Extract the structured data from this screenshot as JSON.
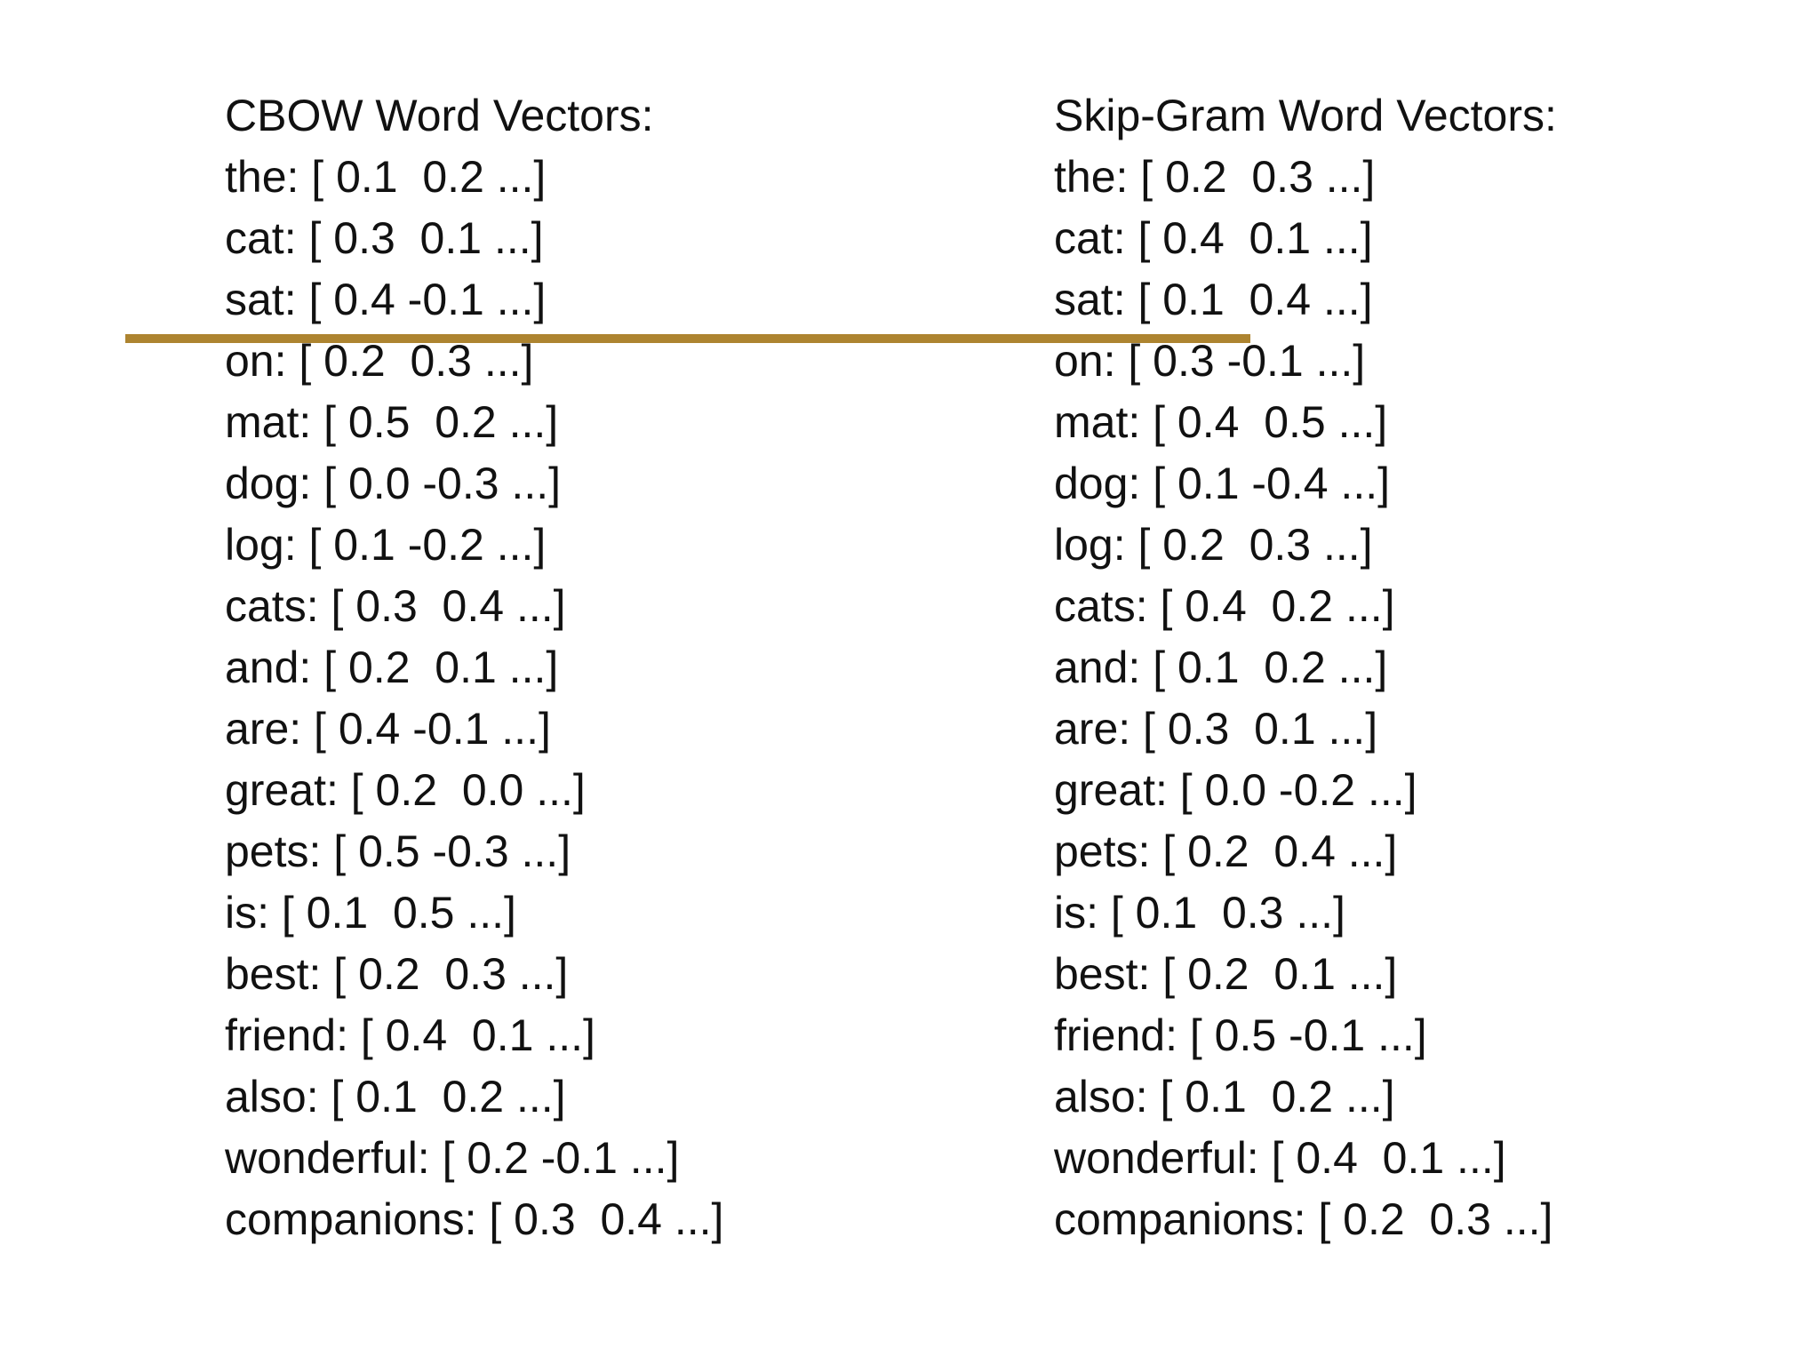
{
  "colors": {
    "rule": "#ad8430",
    "text": "#111111",
    "background": "#ffffff"
  },
  "left_column": {
    "title": "CBOW Word Vectors:",
    "rows": [
      "the: [ 0.1  0.2 ...]",
      "cat: [ 0.3  0.1 ...]",
      "sat: [ 0.4 -0.1 ...]",
      "on: [ 0.2  0.3 ...]",
      "mat: [ 0.5  0.2 ...]",
      "dog: [ 0.0 -0.3 ...]",
      "log: [ 0.1 -0.2 ...]",
      "cats: [ 0.3  0.4 ...]",
      "and: [ 0.2  0.1 ...]",
      "are: [ 0.4 -0.1 ...]",
      "great: [ 0.2  0.0 ...]",
      "pets: [ 0.5 -0.3 ...]",
      "is: [ 0.1  0.5 ...]",
      "best: [ 0.2  0.3 ...]",
      "friend: [ 0.4  0.1 ...]",
      "also: [ 0.1  0.2 ...]",
      "wonderful: [ 0.2 -0.1 ...]",
      "companions: [ 0.3  0.4 ...]"
    ]
  },
  "right_column": {
    "title": "Skip-Gram Word Vectors:",
    "rows": [
      "the: [ 0.2  0.3 ...]",
      "cat: [ 0.4  0.1 ...]",
      "sat: [ 0.1  0.4 ...]",
      "on: [ 0.3 -0.1 ...]",
      "mat: [ 0.4  0.5 ...]",
      "dog: [ 0.1 -0.4 ...]",
      "log: [ 0.2  0.3 ...]",
      "cats: [ 0.4  0.2 ...]",
      "and: [ 0.1  0.2 ...]",
      "are: [ 0.3  0.1 ...]",
      "great: [ 0.0 -0.2 ...]",
      "pets: [ 0.2  0.4 ...]",
      "is: [ 0.1  0.3 ...]",
      "best: [ 0.2  0.1 ...]",
      "friend: [ 0.5 -0.1 ...]",
      "also: [ 0.1  0.2 ...]",
      "wonderful: [ 0.4  0.1 ...]",
      "companions: [ 0.2  0.3 ...]"
    ]
  }
}
